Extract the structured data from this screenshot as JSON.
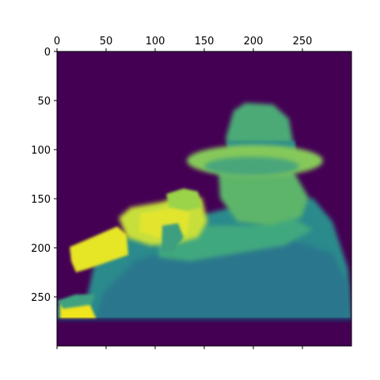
{
  "chart_data": {
    "type": "heatmap",
    "title": "",
    "xlabel": "",
    "ylabel": "",
    "xlim": [
      0,
      300
    ],
    "ylim": [
      300,
      0
    ],
    "x_axis_position": "top",
    "x_ticks": [
      0,
      50,
      100,
      150,
      200,
      250
    ],
    "y_ticks": [
      0,
      50,
      100,
      150,
      200,
      250
    ],
    "x_tick_labels": [
      "0",
      "50",
      "100",
      "150",
      "200",
      "250"
    ],
    "y_tick_labels": [
      "0",
      "50",
      "100",
      "150",
      "200",
      "250"
    ],
    "colormap": "viridis",
    "colors": {
      "background": "#440154",
      "low": "#3b528b",
      "mid": "#21918c",
      "high_mid": "#5ec962",
      "high": "#fde725"
    },
    "image_description_regions": [
      {
        "region": "hat brim",
        "intensity": 0.72
      },
      {
        "region": "hat crown",
        "intensity": 0.6
      },
      {
        "region": "face",
        "intensity": 0.55
      },
      {
        "region": "camera",
        "intensity": 0.9
      },
      {
        "region": "coat and body",
        "intensity": 0.45
      },
      {
        "region": "lower left bright patch",
        "intensity": 0.95
      }
    ],
    "grid": false
  }
}
